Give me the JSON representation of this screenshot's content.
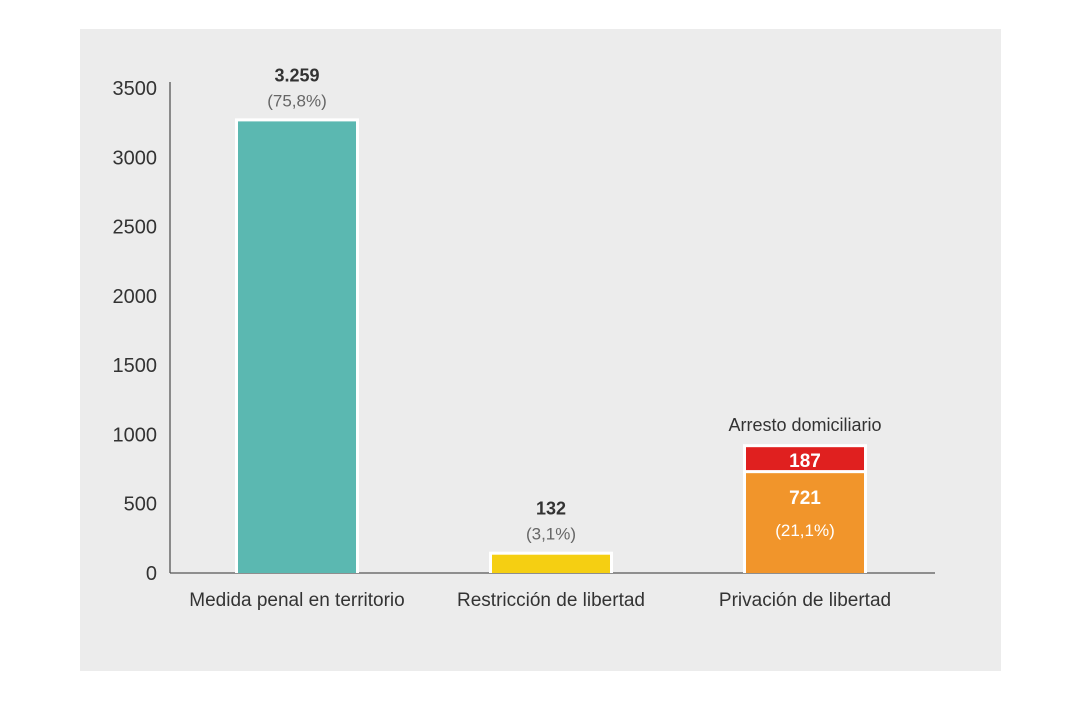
{
  "chart_data": {
    "type": "bar",
    "stacked": true,
    "ylim": [
      0,
      3500
    ],
    "yticks": [
      0,
      500,
      1000,
      1500,
      2000,
      2500,
      3000,
      3500
    ],
    "categories": [
      "Medida penal en territorio",
      "Restricción de libertad",
      "Privación de libertad"
    ],
    "series": [
      {
        "name": "",
        "color": "#5bb8b1",
        "values": [
          3259,
          null,
          null
        ],
        "labels": [
          "3.259",
          null,
          null
        ],
        "percent_labels": [
          "(75,8%)",
          null,
          null
        ]
      },
      {
        "name": "",
        "color": "#f5cf12",
        "values": [
          null,
          132,
          null
        ],
        "labels": [
          null,
          "132",
          null
        ],
        "percent_labels": [
          null,
          "(3,1%)",
          null
        ]
      },
      {
        "name": "",
        "color": "#f1952b",
        "values": [
          null,
          null,
          721
        ],
        "labels": [
          null,
          null,
          "721"
        ],
        "percent_labels": [
          null,
          null,
          "(21,1%)"
        ]
      },
      {
        "name": "Arresto domiciliario",
        "color": "#e0201f",
        "values": [
          null,
          null,
          187
        ],
        "labels": [
          null,
          null,
          "187"
        ],
        "percent_labels": [
          null,
          null,
          null
        ]
      }
    ],
    "annotations": [
      {
        "category": "Privación de libertad",
        "text": "Arresto domiciliario"
      }
    ],
    "grid": false,
    "title": "",
    "xlabel": "",
    "ylabel": ""
  }
}
